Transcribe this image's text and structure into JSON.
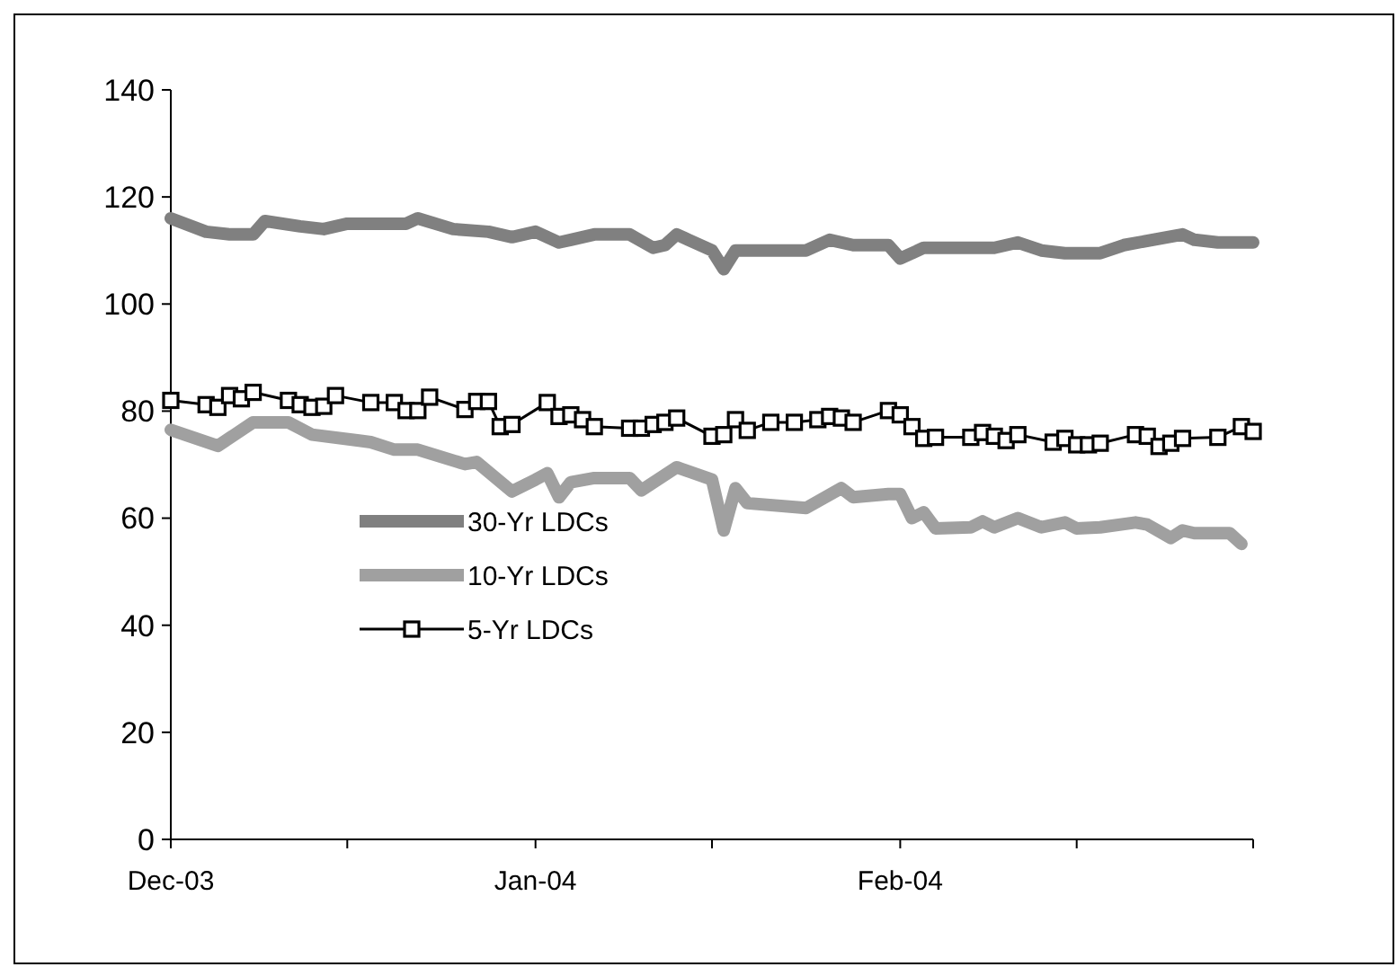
{
  "chart_data": {
    "type": "line",
    "xlim": [
      "2003-12-01",
      "2004-03-02"
    ],
    "xticks": [
      {
        "value": "2003-12-01",
        "label": "Dec-03"
      },
      {
        "value": "2003-12-16",
        "label": null
      },
      {
        "value": "2004-01-01",
        "label": "Jan-04"
      },
      {
        "value": "2004-01-16",
        "label": null
      },
      {
        "value": "2004-02-01",
        "label": "Feb-04"
      },
      {
        "value": "2004-02-16",
        "label": null
      },
      {
        "value": "2004-03-02",
        "label": null
      }
    ],
    "ylim": [
      0,
      140
    ],
    "yticks": [
      0,
      20,
      40,
      60,
      80,
      100,
      120,
      140
    ],
    "grid": false,
    "legend": "bottom left",
    "series": [
      {
        "name": "30-Yr LDCs",
        "color": "#808080",
        "marker": "none",
        "x": [
          "2003-12-01",
          "2003-12-04",
          "2003-12-06",
          "2003-12-08",
          "2003-12-09",
          "2003-12-12",
          "2003-12-14",
          "2003-12-16",
          "2003-12-19",
          "2003-12-21",
          "2003-12-22",
          "2003-12-25",
          "2003-12-28",
          "2003-12-30",
          "2004-01-01",
          "2004-01-03",
          "2004-01-04",
          "2004-01-06",
          "2004-01-09",
          "2004-01-11",
          "2004-01-12",
          "2004-01-13",
          "2004-01-14",
          "2004-01-16",
          "2004-01-17",
          "2004-01-18",
          "2004-01-21",
          "2004-01-24",
          "2004-01-26",
          "2004-01-28",
          "2004-01-31",
          "2004-02-01",
          "2004-02-03",
          "2004-02-07",
          "2004-02-09",
          "2004-02-11",
          "2004-02-13",
          "2004-02-15",
          "2004-02-18",
          "2004-02-20",
          "2004-02-25",
          "2004-02-26",
          "2004-02-28",
          "2004-03-02"
        ],
        "values": [
          116,
          113.5,
          113,
          113,
          115.5,
          114.5,
          114,
          115,
          115,
          115,
          116,
          114,
          113.5,
          112.5,
          113.5,
          111.5,
          112,
          113,
          113,
          110.5,
          111,
          113,
          112,
          110,
          106.5,
          110,
          110,
          110,
          112,
          111,
          111,
          108.5,
          110.5,
          110.5,
          110.5,
          111.5,
          110,
          109.5,
          109.5,
          111,
          113,
          112,
          111.5,
          111.5
        ]
      },
      {
        "name": "10-Yr LDCs",
        "color": "#a0a0a0",
        "marker": "none",
        "x": [
          "2003-12-01",
          "2003-12-05",
          "2003-12-08",
          "2003-12-11",
          "2003-12-13",
          "2003-12-17",
          "2003-12-18",
          "2003-12-20",
          "2003-12-22",
          "2003-12-26",
          "2003-12-27",
          "2003-12-30",
          "2004-01-01",
          "2004-01-02",
          "2004-01-03",
          "2004-01-04",
          "2004-01-06",
          "2004-01-09",
          "2004-01-10",
          "2004-01-13",
          "2004-01-16",
          "2004-01-17",
          "2004-01-18",
          "2004-01-19",
          "2004-01-24",
          "2004-01-27",
          "2004-01-28",
          "2004-01-31",
          "2004-02-01",
          "2004-02-02",
          "2004-02-03",
          "2004-02-04",
          "2004-02-07",
          "2004-02-08",
          "2004-02-09",
          "2004-02-11",
          "2004-02-13",
          "2004-02-15",
          "2004-02-16",
          "2004-02-18",
          "2004-02-21",
          "2004-02-22",
          "2004-02-24",
          "2004-02-25",
          "2004-02-26",
          "2004-02-29",
          "2004-03-01"
        ],
        "values": [
          76.5,
          73.5,
          77.9,
          77.9,
          75.6,
          74.5,
          74.2,
          72.8,
          72.8,
          70.1,
          70.5,
          65,
          67.2,
          68.4,
          63.9,
          66.7,
          67.5,
          67.5,
          65.2,
          69.5,
          67.2,
          57.7,
          65.6,
          62.8,
          61.9,
          65.6,
          63.9,
          64.5,
          64.5,
          60,
          61.1,
          58.1,
          58.3,
          59.4,
          58.3,
          60,
          58.3,
          59.2,
          58.1,
          58.3,
          59.2,
          58.8,
          56.3,
          57.7,
          57.2,
          57.2,
          55.2
        ]
      },
      {
        "name": "5-Yr LDCs",
        "color": "#000000",
        "marker": "square",
        "x": [
          "2003-12-01",
          "2003-12-04",
          "2003-12-05",
          "2003-12-06",
          "2003-12-07",
          "2003-12-08",
          "2003-12-11",
          "2003-12-12",
          "2003-12-13",
          "2003-12-14",
          "2003-12-15",
          "2003-12-18",
          "2003-12-20",
          "2003-12-21",
          "2003-12-22",
          "2003-12-23",
          "2003-12-26",
          "2003-12-27",
          "2003-12-28",
          "2003-12-29",
          "2003-12-30",
          "2004-01-02",
          "2004-01-03",
          "2004-01-04",
          "2004-01-05",
          "2004-01-06",
          "2004-01-09",
          "2004-01-10",
          "2004-01-11",
          "2004-01-12",
          "2004-01-13",
          "2004-01-16",
          "2004-01-17",
          "2004-01-18",
          "2004-01-19",
          "2004-01-21",
          "2004-01-23",
          "2004-01-25",
          "2004-01-26",
          "2004-01-27",
          "2004-01-28",
          "2004-01-31",
          "2004-02-01",
          "2004-02-02",
          "2004-02-03",
          "2004-02-04",
          "2004-02-07",
          "2004-02-08",
          "2004-02-09",
          "2004-02-10",
          "2004-02-11",
          "2004-02-14",
          "2004-02-15",
          "2004-02-16",
          "2004-02-17",
          "2004-02-18",
          "2004-02-21",
          "2004-02-22",
          "2004-02-23",
          "2004-02-24",
          "2004-02-25",
          "2004-02-28",
          "2004-03-01",
          "2004-03-02"
        ],
        "values": [
          82,
          81.2,
          80.7,
          82.9,
          82.3,
          83.5,
          82,
          81.2,
          80.7,
          80.9,
          82.9,
          81.6,
          81.6,
          80.1,
          80.1,
          82.6,
          80.3,
          81.8,
          81.8,
          77.1,
          77.5,
          81.6,
          79,
          79.3,
          78.4,
          77.1,
          76.8,
          76.8,
          77.5,
          77.9,
          78.7,
          75.3,
          75.6,
          78.4,
          76.4,
          77.9,
          77.9,
          78.4,
          79,
          78.7,
          77.9,
          80.1,
          79.3,
          77.1,
          74.9,
          75.1,
          75.1,
          76,
          75.3,
          74.5,
          75.6,
          74.2,
          74.9,
          73.7,
          73.7,
          74,
          75.6,
          75.3,
          73.4,
          74,
          74.9,
          75.1,
          77.1,
          76.2
        ]
      }
    ]
  }
}
